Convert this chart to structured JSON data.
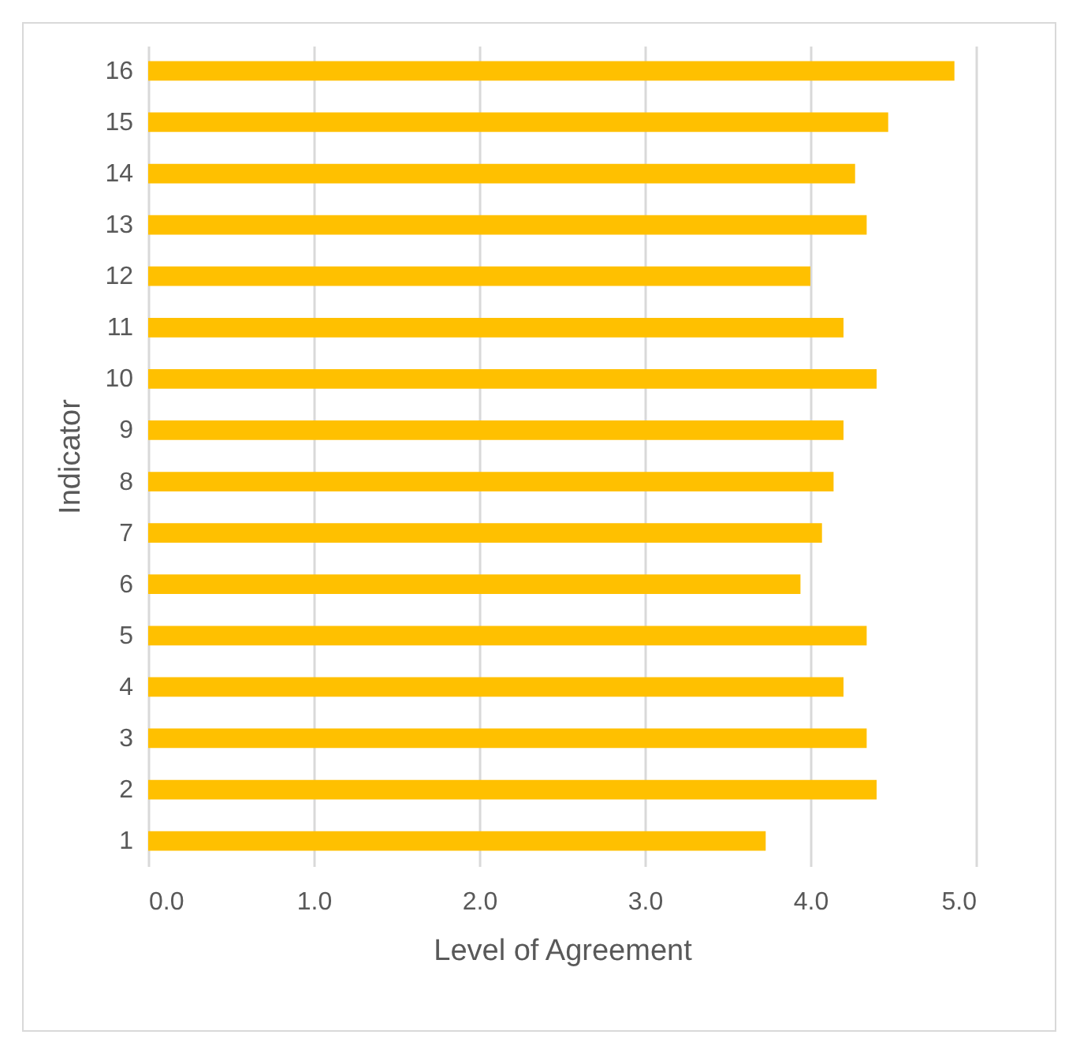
{
  "chart_data": {
    "type": "bar",
    "orientation": "horizontal",
    "xlabel": "Level of Agreement",
    "ylabel": "Indicator",
    "categories": [
      "16",
      "15",
      "14",
      "13",
      "12",
      "11",
      "10",
      "9",
      "8",
      "7",
      "6",
      "5",
      "4",
      "3",
      "2",
      "1"
    ],
    "values": [
      4.87,
      4.47,
      4.27,
      4.34,
      4.0,
      4.2,
      4.4,
      4.2,
      4.14,
      4.07,
      3.94,
      4.34,
      4.2,
      4.34,
      4.4,
      3.73
    ],
    "color": "#ffc000",
    "xlim": [
      0,
      5
    ],
    "xticks": [
      {
        "value": 0,
        "label": "0.0"
      },
      {
        "value": 1,
        "label": "1.0"
      },
      {
        "value": 2,
        "label": "2.0"
      },
      {
        "value": 3,
        "label": "3.0"
      },
      {
        "value": 4,
        "label": "4.0"
      },
      {
        "value": 5,
        "label": "5.0"
      }
    ],
    "grid": "x"
  }
}
